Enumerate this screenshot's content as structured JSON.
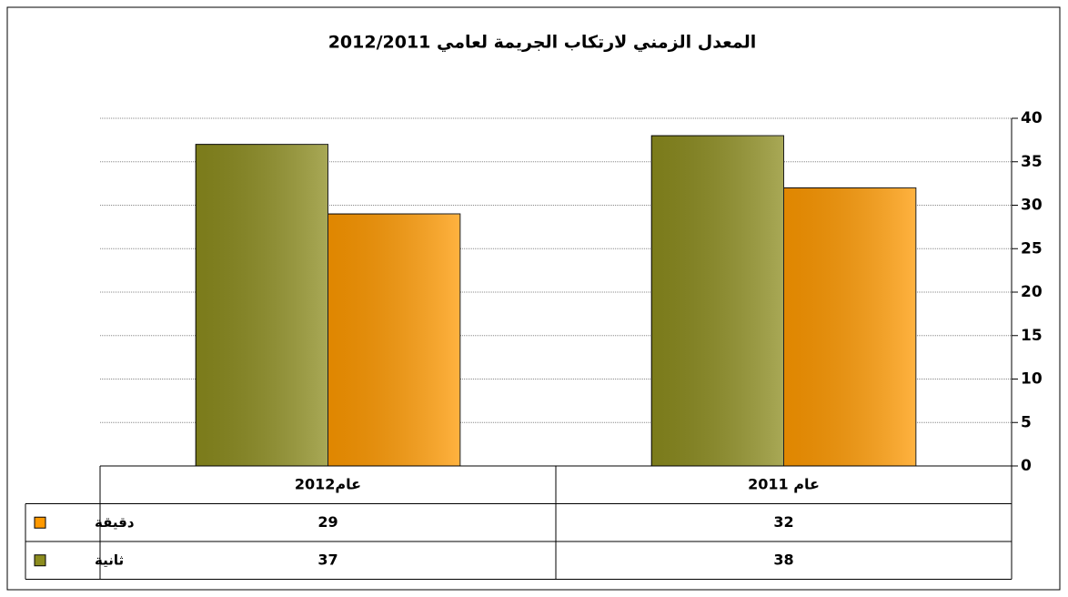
{
  "chart_data": {
    "type": "bar",
    "title": "المعدل الزمني لارتكاب الجريمة لعامي 2012/2011",
    "categories": [
      "عام 2011",
      "عام2012"
    ],
    "series": [
      {
        "name": "دقيقة",
        "color": "#ff9900",
        "values": [
          32,
          29
        ]
      },
      {
        "name": "ثانية",
        "color": "#8c8c1e",
        "values": [
          38,
          37
        ]
      }
    ],
    "ylim": [
      0,
      40
    ],
    "yticks": [
      0,
      5,
      10,
      15,
      20,
      25,
      30,
      35,
      40
    ],
    "grid": true,
    "data_table": true
  }
}
